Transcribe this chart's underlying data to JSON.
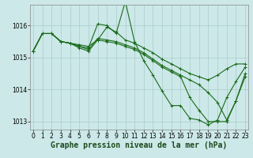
{
  "xlabel": "Graphe pression niveau de la mer (hPa)",
  "xlabel_fontsize": 7,
  "background_color": "#cce8e8",
  "grid_color": "#aacccc",
  "line_color": "#1a6b1a",
  "marker": "+",
  "markersize": 3,
  "linewidth": 0.8,
  "ylim": [
    1012.75,
    1016.65
  ],
  "xlim": [
    -0.3,
    23.3
  ],
  "yticks": [
    1013,
    1014,
    1015,
    1016
  ],
  "xticks": [
    0,
    1,
    2,
    3,
    4,
    5,
    6,
    7,
    8,
    9,
    10,
    11,
    12,
    13,
    14,
    15,
    16,
    17,
    18,
    19,
    20,
    21,
    22,
    23
  ],
  "tick_fontsize": 5.5,
  "series": [
    [
      1015.2,
      1015.75,
      1015.75,
      1015.5,
      1015.45,
      1015.4,
      1015.35,
      1015.55,
      1015.95,
      1015.8,
      1015.55,
      1015.45,
      1015.3,
      1015.15,
      1014.95,
      1014.8,
      1014.65,
      1014.5,
      1014.4,
      1014.3,
      1014.45,
      1014.65,
      1014.8,
      1014.8
    ],
    [
      1015.2,
      1015.75,
      1015.75,
      1015.5,
      1015.45,
      1015.35,
      1015.3,
      1016.05,
      1016.0,
      1015.75,
      1016.75,
      1015.5,
      1014.9,
      1014.45,
      1013.95,
      1013.5,
      1013.5,
      1013.1,
      1013.05,
      1012.9,
      1013.05,
      1013.75,
      1014.25,
      1014.7
    ],
    [
      1015.2,
      1015.75,
      1015.75,
      1015.5,
      1015.45,
      1015.35,
      1015.25,
      1015.6,
      1015.55,
      1015.5,
      1015.4,
      1015.3,
      1015.15,
      1014.95,
      1014.75,
      1014.6,
      1014.45,
      1014.3,
      1014.15,
      1013.9,
      1013.6,
      1013.05,
      1013.65,
      1014.5
    ],
    [
      1015.2,
      1015.75,
      1015.75,
      1015.5,
      1015.45,
      1015.3,
      1015.2,
      1015.55,
      1015.5,
      1015.45,
      1015.35,
      1015.25,
      1015.1,
      1014.9,
      1014.7,
      1014.55,
      1014.4,
      1013.75,
      1013.35,
      1013.0,
      1013.0,
      1013.0,
      1013.65,
      1014.4
    ]
  ]
}
